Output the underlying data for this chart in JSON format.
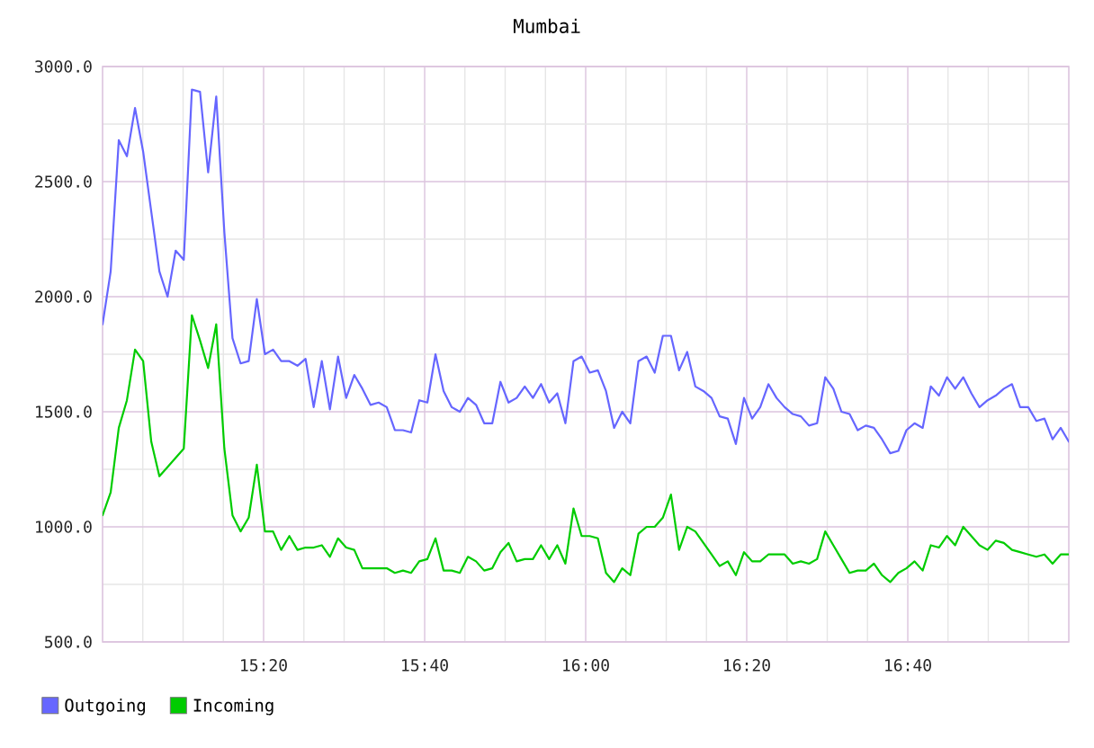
{
  "chart_data": {
    "type": "line",
    "title": "Mumbai",
    "x": [
      15.0,
      15.0168,
      15.0336,
      15.0504,
      15.0672,
      15.084,
      15.1008,
      15.1176,
      15.1345,
      15.1513,
      15.1681,
      15.1849,
      15.2017,
      15.2185,
      15.2353,
      15.2521,
      15.2689,
      15.2857,
      15.3025,
      15.3193,
      15.3361,
      15.3529,
      15.3697,
      15.3866,
      15.4034,
      15.4202,
      15.437,
      15.4538,
      15.4706,
      15.4874,
      15.5042,
      15.521,
      15.5378,
      15.5546,
      15.5714,
      15.5882,
      15.605,
      15.6218,
      15.6387,
      15.6555,
      15.6723,
      15.6891,
      15.7059,
      15.7227,
      15.7395,
      15.7563,
      15.7731,
      15.7899,
      15.8067,
      15.8235,
      15.8403,
      15.8571,
      15.8739,
      15.8908,
      15.9076,
      15.9244,
      15.9412,
      15.958,
      15.9748,
      15.9916,
      16.0084,
      16.0252,
      16.042,
      16.0588,
      16.0756,
      16.0924,
      16.1092,
      16.1261,
      16.1429,
      16.1597,
      16.1765,
      16.1933,
      16.2101,
      16.2269,
      16.2437,
      16.2605,
      16.2773,
      16.2941,
      16.3109,
      16.3277,
      16.3445,
      16.3613,
      16.3782,
      16.395,
      16.4118,
      16.4286,
      16.4454,
      16.4622,
      16.479,
      16.4958,
      16.5126,
      16.5294,
      16.5462,
      16.563,
      16.5798,
      16.5966,
      16.6134,
      16.6303,
      16.6471,
      16.6639,
      16.6807,
      16.6975,
      16.7143,
      16.7311,
      16.7479,
      16.7647,
      16.7815,
      16.7983,
      16.8151,
      16.8319,
      16.8487,
      16.8655,
      16.8824,
      16.8992,
      16.916,
      16.9328,
      16.9496,
      16.9664,
      16.9832,
      17.0
    ],
    "series": [
      {
        "name": "Outgoing",
        "color": "#6666ff",
        "values": [
          1880,
          2110,
          2680,
          2610,
          2820,
          2630,
          2370,
          2110,
          2000,
          2200,
          2160,
          2900,
          2890,
          2540,
          2870,
          2280,
          1820,
          1710,
          1720,
          1990,
          1750,
          1770,
          1720,
          1720,
          1700,
          1730,
          1520,
          1720,
          1510,
          1740,
          1560,
          1660,
          1600,
          1530,
          1540,
          1520,
          1420,
          1420,
          1410,
          1550,
          1540,
          1750,
          1590,
          1520,
          1500,
          1560,
          1530,
          1450,
          1450,
          1630,
          1540,
          1560,
          1610,
          1560,
          1620,
          1540,
          1580,
          1450,
          1720,
          1740,
          1670,
          1680,
          1590,
          1430,
          1500,
          1450,
          1720,
          1740,
          1670,
          1830,
          1830,
          1680,
          1760,
          1610,
          1590,
          1560,
          1480,
          1470,
          1360,
          1560,
          1470,
          1520,
          1620,
          1560,
          1520,
          1490,
          1480,
          1440,
          1450,
          1650,
          1600,
          1500,
          1490,
          1420,
          1440,
          1430,
          1380,
          1320,
          1330,
          1420,
          1450,
          1430,
          1610,
          1570,
          1650,
          1600,
          1650,
          1580,
          1520,
          1550,
          1570,
          1600,
          1620,
          1520,
          1520,
          1460,
          1470,
          1380,
          1430,
          1370
        ]
      },
      {
        "name": "Incoming",
        "color": "#00cc00",
        "values": [
          1050,
          1150,
          1430,
          1550,
          1770,
          1720,
          1370,
          1220,
          1260,
          1300,
          1340,
          1920,
          1810,
          1690,
          1880,
          1340,
          1050,
          980,
          1040,
          1270,
          980,
          980,
          900,
          960,
          900,
          910,
          910,
          920,
          870,
          950,
          910,
          900,
          820,
          820,
          820,
          820,
          800,
          810,
          800,
          850,
          860,
          950,
          810,
          810,
          800,
          870,
          850,
          810,
          820,
          890,
          930,
          850,
          860,
          860,
          920,
          860,
          920,
          840,
          1080,
          960,
          960,
          950,
          800,
          760,
          820,
          790,
          970,
          1000,
          1000,
          1040,
          1140,
          900,
          1000,
          980,
          930,
          880,
          830,
          850,
          790,
          890,
          850,
          850,
          880,
          880,
          880,
          840,
          850,
          840,
          860,
          980,
          920,
          860,
          800,
          810,
          810,
          840,
          790,
          760,
          800,
          820,
          850,
          810,
          920,
          910,
          960,
          920,
          1000,
          960,
          920,
          900,
          940,
          930,
          900,
          890,
          880,
          870,
          880,
          840,
          880,
          880
        ]
      }
    ],
    "xlim": [
      15,
      17
    ],
    "xticks": [
      {
        "value": 15.0833,
        "label": null
      },
      {
        "value": 15.1667,
        "label": null
      },
      {
        "value": 15.25,
        "label": null
      },
      {
        "value": 15.3333,
        "label": "15:20"
      },
      {
        "value": 15.4167,
        "label": null
      },
      {
        "value": 15.5,
        "label": null
      },
      {
        "value": 15.5833,
        "label": null
      },
      {
        "value": 15.6667,
        "label": "15:40"
      },
      {
        "value": 15.75,
        "label": null
      },
      {
        "value": 15.8333,
        "label": null
      },
      {
        "value": 15.9167,
        "label": null
      },
      {
        "value": 16,
        "label": "16:00"
      },
      {
        "value": 16.0833,
        "label": null
      },
      {
        "value": 16.1667,
        "label": null
      },
      {
        "value": 16.25,
        "label": null
      },
      {
        "value": 16.3333,
        "label": "16:20"
      },
      {
        "value": 16.4167,
        "label": null
      },
      {
        "value": 16.5,
        "label": null
      },
      {
        "value": 16.5833,
        "label": null
      },
      {
        "value": 16.6667,
        "label": "16:40"
      },
      {
        "value": 16.75,
        "label": null
      },
      {
        "value": 16.8333,
        "label": null
      },
      {
        "value": 16.9167,
        "label": null
      }
    ],
    "ylim": [
      500,
      3000
    ],
    "yticks": [
      {
        "value": 500,
        "label": "500.0"
      },
      {
        "value": 750,
        "label": null
      },
      {
        "value": 1000,
        "label": "1000.0"
      },
      {
        "value": 1250,
        "label": null
      },
      {
        "value": 1500,
        "label": "1500.0"
      },
      {
        "value": 1750,
        "label": null
      },
      {
        "value": 2000,
        "label": "2000.0"
      },
      {
        "value": 2250,
        "label": null
      },
      {
        "value": 2500,
        "label": "2500.0"
      },
      {
        "value": 2750,
        "label": null
      },
      {
        "value": 3000,
        "label": "3000.0"
      }
    ],
    "grid": true,
    "legend": "bottom left",
    "line_style": "solid"
  }
}
